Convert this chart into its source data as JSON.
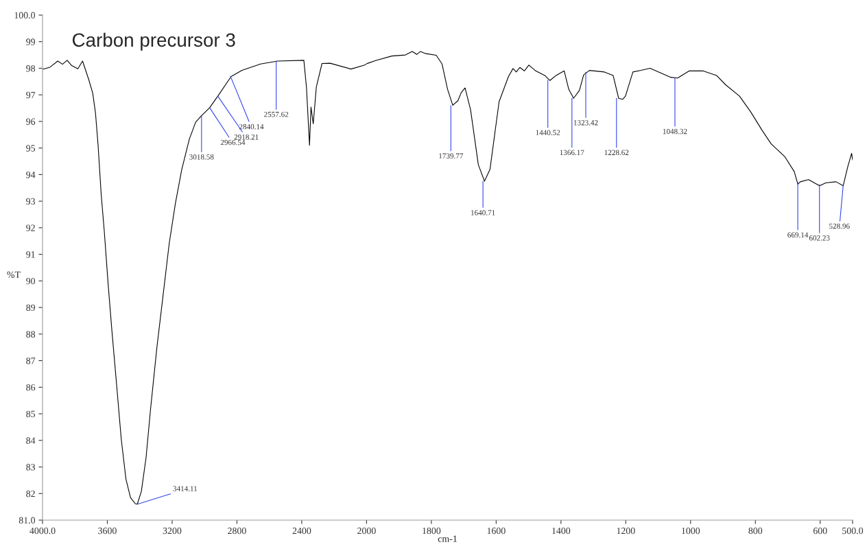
{
  "chart_data": [
    {
      "type": "line",
      "title": "Carbon precursor 3",
      "ylabel": "%T",
      "x": [
        4000,
        3954,
        3906,
        3877,
        3848,
        3820,
        3782,
        3753,
        3715,
        3690,
        3673,
        3657,
        3638,
        3619,
        3594,
        3571,
        3543,
        3514,
        3485,
        3457,
        3428,
        3415,
        3390,
        3361,
        3333,
        3294,
        3256,
        3218,
        3180,
        3141,
        3094,
        3055,
        3021,
        2969,
        2918,
        2836,
        2769,
        2654,
        2549,
        2387,
        2371,
        2352,
        2343,
        2329,
        2310,
        2275,
        2225,
        2096,
        2011,
        2000
      ],
      "series": [
        {
          "color": "#000000",
          "values": [
            97.96,
            98.04,
            98.27,
            98.15,
            98.3,
            98.1,
            97.98,
            98.27,
            97.58,
            97.06,
            96.31,
            95.1,
            93.26,
            91.88,
            89.8,
            88.07,
            86.11,
            84.04,
            82.54,
            81.85,
            81.62,
            81.6,
            82.08,
            83.35,
            85.19,
            87.5,
            89.45,
            91.41,
            92.91,
            94.18,
            95.33,
            95.97,
            96.2,
            96.51,
            96.95,
            97.69,
            97.92,
            98.16,
            98.27,
            98.3,
            97.29,
            95.1,
            96.54,
            95.91,
            97.29,
            98.18,
            98.19,
            97.97,
            98.12,
            98.17
          ]
        }
      ],
      "xlim": [
        4000,
        2000
      ],
      "xticks": [
        {
          "value": 4000,
          "label": "4000.0"
        },
        3600,
        3200,
        2800,
        2400
      ],
      "ylim": [
        81,
        100
      ],
      "yticks": [
        {
          "value": 81,
          "label": "81.0"
        },
        82,
        83,
        84,
        85,
        86,
        87,
        88,
        89,
        90,
        91,
        92,
        93,
        94,
        95,
        96,
        97,
        98,
        99,
        {
          "value": 100,
          "label": "100.0"
        }
      ],
      "grid": false,
      "annotations": [
        {
          "text": "3414.11",
          "x": 3414.11,
          "y": 81.6
        },
        {
          "text": "3018.58",
          "x": 3018.58,
          "y": 96.2
        },
        {
          "text": "2966.54",
          "x": 2966.54,
          "y": 96.5
        },
        {
          "text": "2918.21",
          "x": 2918.21,
          "y": 96.95
        },
        {
          "text": "2840.14",
          "x": 2840.14,
          "y": 97.7
        },
        {
          "text": "2557.62",
          "x": 2557.62,
          "y": 98.27
        }
      ]
    },
    {
      "type": "line",
      "xlabel": "cm-1",
      "x": [
        2000,
        1972,
        1922,
        1880,
        1859,
        1845,
        1834,
        1817,
        1785,
        1767,
        1750,
        1734,
        1718,
        1708,
        1696,
        1679,
        1655,
        1636,
        1619,
        1591,
        1562,
        1548,
        1538,
        1527,
        1513,
        1499,
        1478,
        1450,
        1434,
        1415,
        1390,
        1376,
        1361,
        1343,
        1330,
        1312,
        1266,
        1239,
        1222,
        1210,
        1201,
        1178,
        1153,
        1125,
        1090,
        1061,
        1040,
        1004,
        962,
        920,
        892,
        849,
        814,
        779,
        751,
        709,
        680,
        669,
        661,
        636,
        602,
        583,
        551,
        529,
        515,
        503,
        500
      ],
      "series": [
        {
          "color": "#000000",
          "values": [
            98.17,
            98.29,
            98.46,
            98.5,
            98.63,
            98.52,
            98.63,
            98.55,
            98.49,
            98.16,
            97.21,
            96.61,
            96.78,
            97.08,
            97.26,
            96.44,
            94.37,
            93.75,
            94.2,
            96.74,
            97.69,
            97.99,
            97.86,
            98.03,
            97.9,
            98.12,
            97.9,
            97.73,
            97.54,
            97.73,
            97.9,
            97.21,
            96.87,
            97.17,
            97.75,
            97.92,
            97.86,
            97.73,
            96.87,
            96.83,
            96.95,
            97.86,
            97.92,
            98.0,
            97.81,
            97.66,
            97.63,
            97.9,
            97.9,
            97.73,
            97.38,
            96.95,
            96.35,
            95.66,
            95.15,
            94.67,
            94.11,
            93.64,
            93.73,
            93.81,
            93.58,
            93.69,
            93.73,
            93.58,
            94.29,
            94.8,
            94.55
          ]
        }
      ],
      "xlim": [
        2000,
        500
      ],
      "xticks": [
        2000,
        1800,
        1600,
        1400,
        1200,
        1000,
        800,
        600,
        {
          "value": 500,
          "label": "500.0"
        }
      ],
      "ylim": [
        81,
        100
      ],
      "yticks": [
        81,
        82,
        83,
        84,
        85,
        86,
        87,
        88,
        89,
        90,
        91,
        92,
        93,
        94,
        95,
        96,
        97,
        98,
        99,
        100
      ],
      "tick_labels": "x",
      "grid": false,
      "annotations": [
        {
          "text": "1739.77",
          "x": 1739.77,
          "y": 96.6
        },
        {
          "text": "1640.71",
          "x": 1640.71,
          "y": 93.75
        },
        {
          "text": "1440.52",
          "x": 1440.52,
          "y": 97.55
        },
        {
          "text": "1366.17",
          "x": 1366.17,
          "y": 96.87
        },
        {
          "text": "1323.42",
          "x": 1323.42,
          "y": 97.85
        },
        {
          "text": "1228.62",
          "x": 1228.62,
          "y": 96.87
        },
        {
          "text": "1048.32",
          "x": 1048.32,
          "y": 97.63
        },
        {
          "text": "669.14",
          "x": 669.14,
          "y": 93.7
        },
        {
          "text": "602.23",
          "x": 602.23,
          "y": 93.62
        },
        {
          "text": "528.96",
          "x": 528.96,
          "y": 93.6
        }
      ]
    }
  ]
}
